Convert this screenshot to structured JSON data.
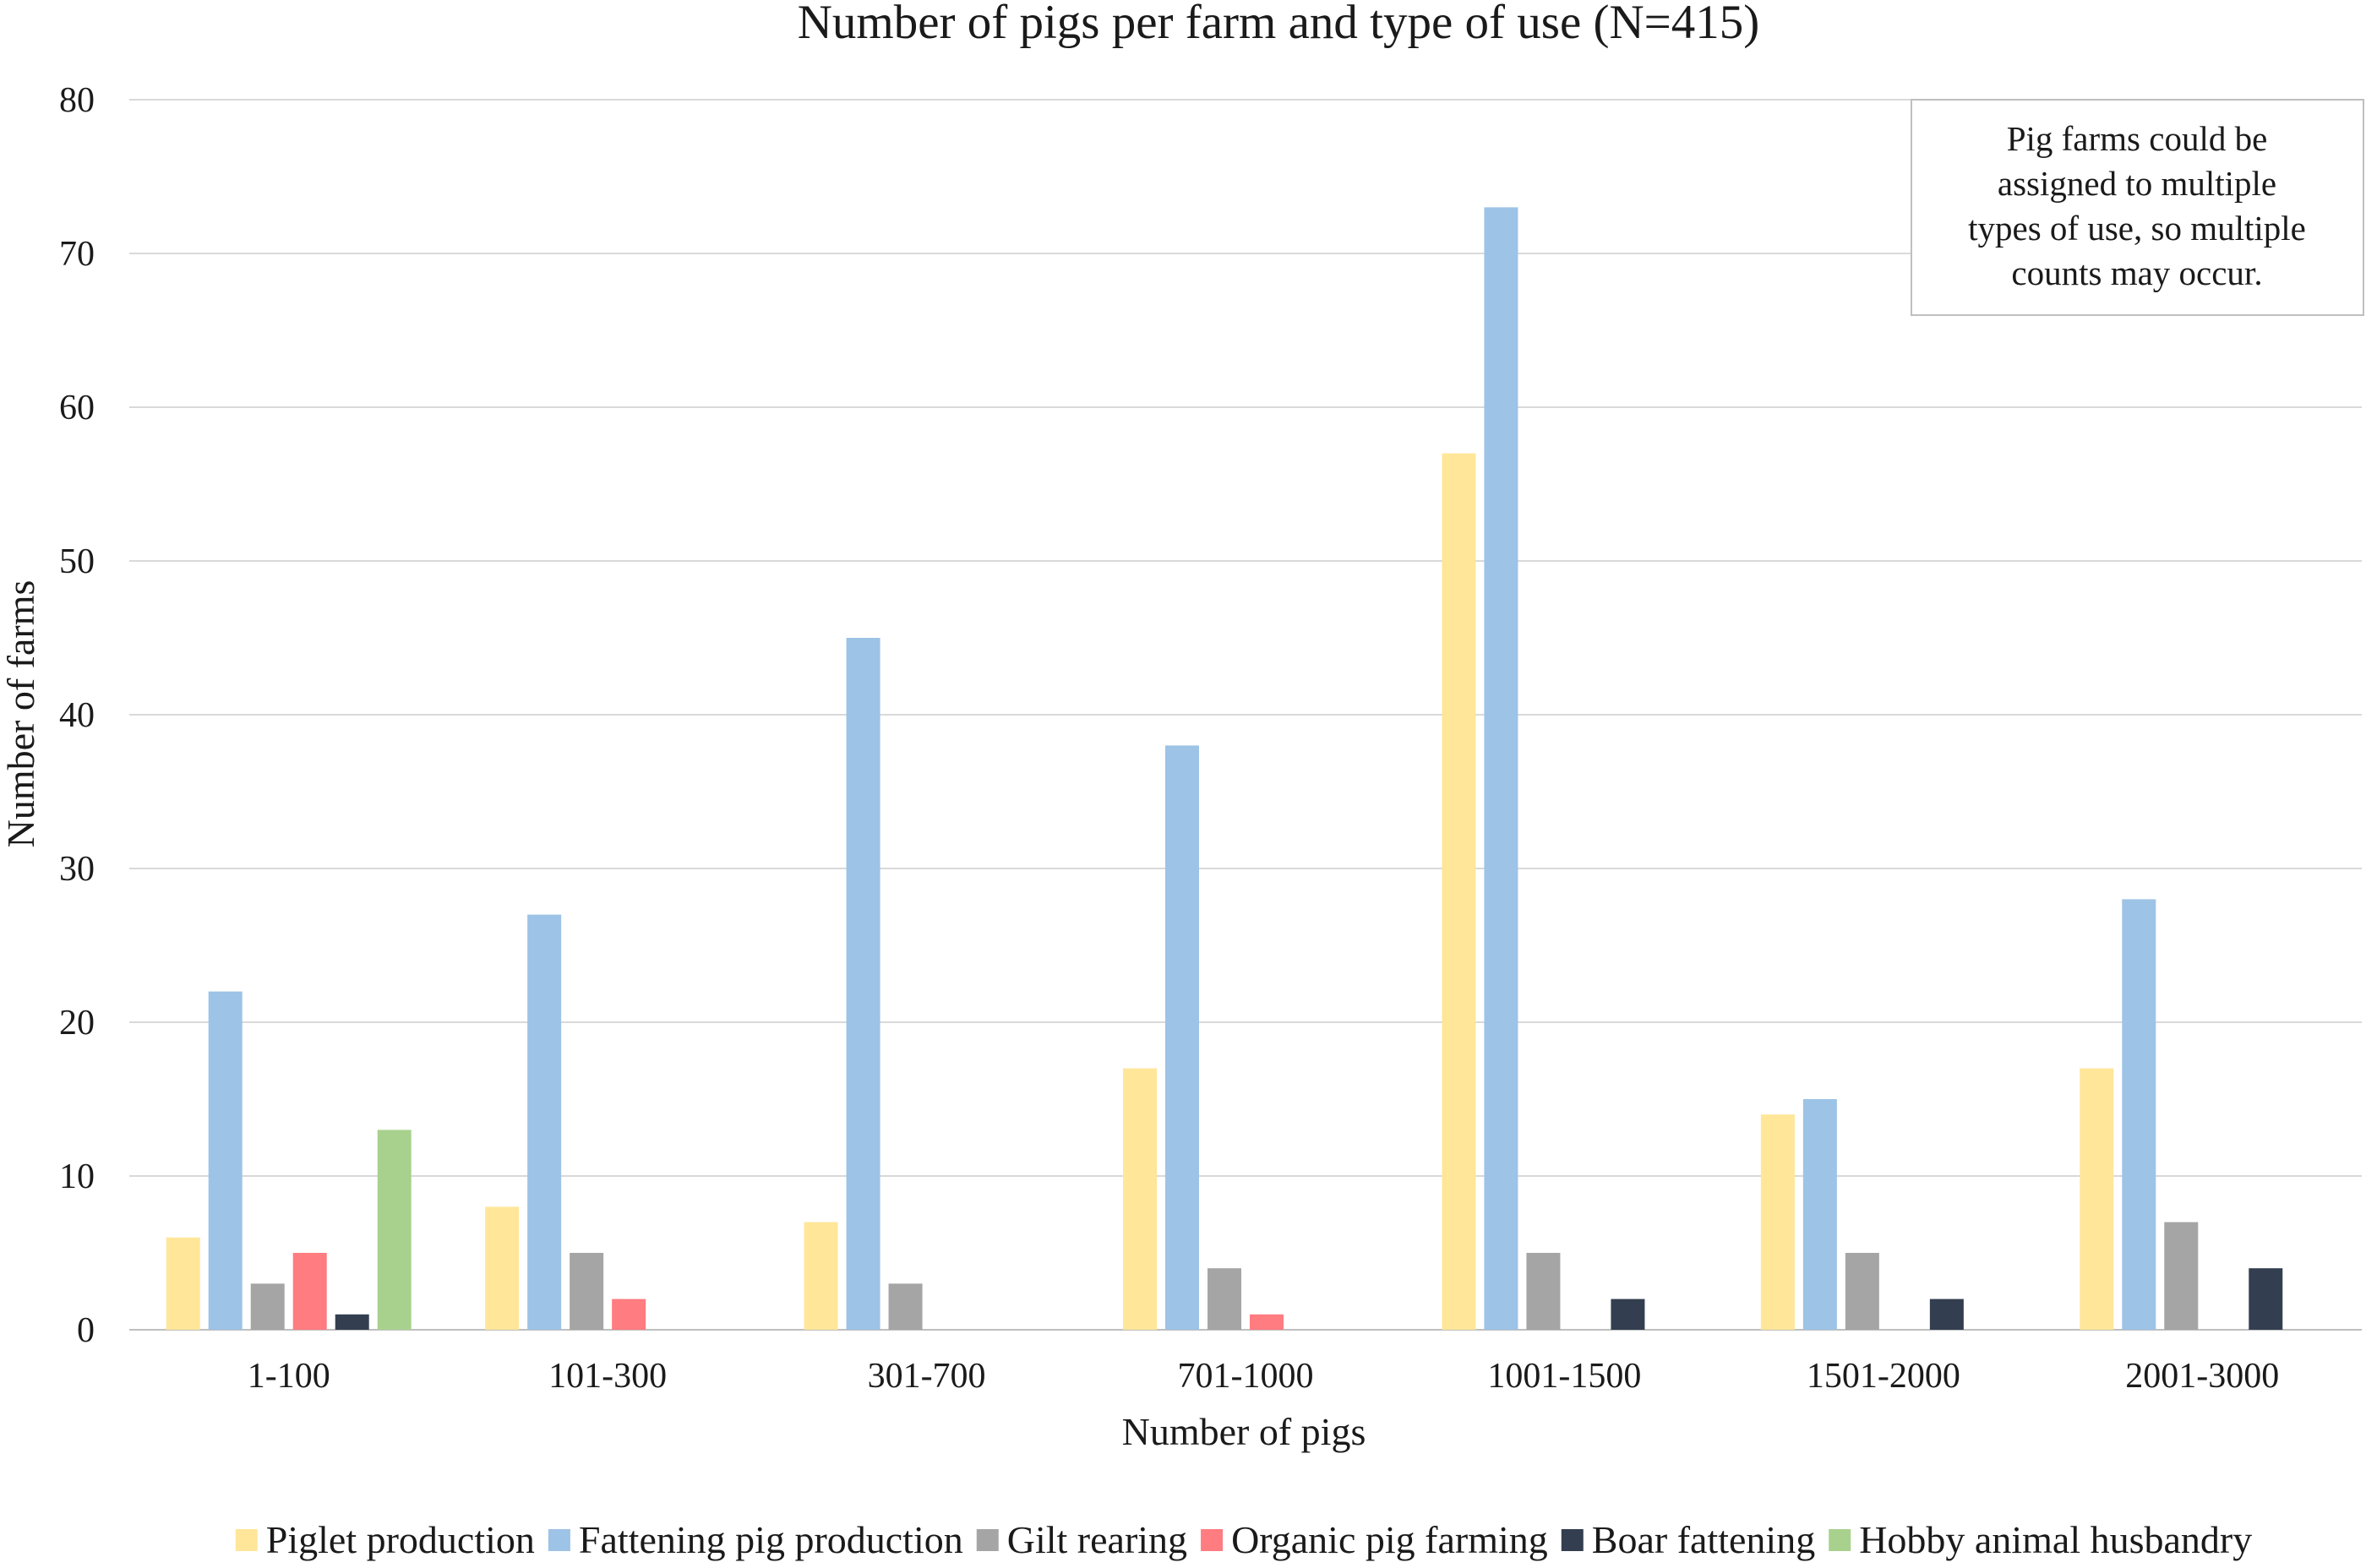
{
  "chart_data": {
    "type": "bar",
    "title": "Number of pigs per farm and type of use (N=415)",
    "xlabel": "Number of pigs",
    "ylabel": "Number of farms",
    "ylim": [
      0,
      80
    ],
    "yticks": [
      0,
      10,
      20,
      30,
      40,
      50,
      60,
      70,
      80
    ],
    "grid": true,
    "legend_position": "bottom",
    "categories": [
      "1-100",
      "101-300",
      "301-700",
      "701-1000",
      "1001-1500",
      "1501-2000",
      "2001-3000"
    ],
    "series": [
      {
        "name": "Piglet production",
        "color": "#FFE699",
        "values": [
          6,
          8,
          7,
          17,
          57,
          14,
          17
        ]
      },
      {
        "name": "Fattening pig production",
        "color": "#9DC3E6",
        "values": [
          22,
          27,
          45,
          38,
          73,
          15,
          28
        ]
      },
      {
        "name": "Gilt rearing",
        "color": "#A5A5A5",
        "values": [
          3,
          5,
          3,
          4,
          5,
          5,
          7
        ]
      },
      {
        "name": "Organic pig farming",
        "color": "#FF7C80",
        "values": [
          5,
          2,
          0,
          1,
          0,
          0,
          0
        ]
      },
      {
        "name": "Boar fattening",
        "color": "#333F50",
        "values": [
          1,
          0,
          0,
          0,
          2,
          2,
          4
        ]
      },
      {
        "name": "Hobby animal husbandry",
        "color": "#A9D18E",
        "values": [
          13,
          0,
          0,
          0,
          0,
          0,
          0
        ]
      }
    ],
    "annotation": {
      "lines": [
        "Pig farms could be",
        "assigned to multiple",
        "types of use, so multiple",
        "counts may occur."
      ]
    }
  }
}
